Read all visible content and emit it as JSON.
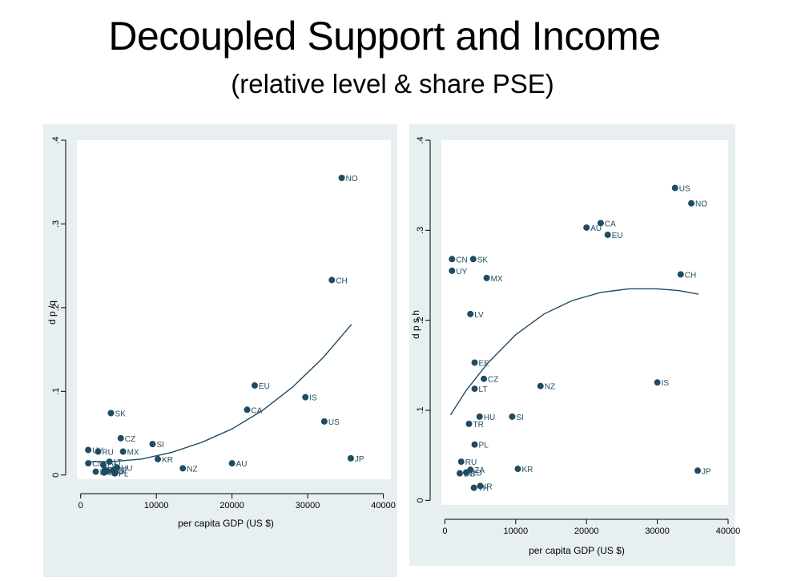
{
  "slide": {
    "title": "Decoupled Support and Income",
    "subtitle": "(relative level & share PSE)"
  },
  "colors": {
    "panel_bg": "#e8eff1",
    "plot_bg": "#ffffff",
    "marker": "#1f4b63",
    "line": "#1f4b63",
    "axis": "#000000"
  },
  "chart_data": [
    {
      "type": "scatter",
      "xlabel": "per capita GDP (US $)",
      "ylabel": "d p /q",
      "xlim": [
        -500,
        41000
      ],
      "ylim": [
        -0.005,
        0.4
      ],
      "xticks": [
        "0",
        "10000",
        "20000",
        "30000",
        "40000"
      ],
      "yticks": [
        "0",
        ".1",
        ".2",
        ".3",
        ".4"
      ],
      "points": [
        {
          "label": "NO",
          "x": 34500,
          "y": 0.355
        },
        {
          "label": "CH",
          "x": 33200,
          "y": 0.233
        },
        {
          "label": "EU",
          "x": 23000,
          "y": 0.107
        },
        {
          "label": "CA",
          "x": 22000,
          "y": 0.078
        },
        {
          "label": "IS",
          "x": 29700,
          "y": 0.093
        },
        {
          "label": "US",
          "x": 32200,
          "y": 0.064
        },
        {
          "label": "JP",
          "x": 35700,
          "y": 0.02
        },
        {
          "label": "AU",
          "x": 20000,
          "y": 0.014
        },
        {
          "label": "NZ",
          "x": 13500,
          "y": 0.008
        },
        {
          "label": "KR",
          "x": 10200,
          "y": 0.019
        },
        {
          "label": "SI",
          "x": 9500,
          "y": 0.037
        },
        {
          "label": "SK",
          "x": 4000,
          "y": 0.074
        },
        {
          "label": "CZ",
          "x": 5300,
          "y": 0.044
        },
        {
          "label": "MX",
          "x": 5600,
          "y": 0.028
        },
        {
          "label": "RU",
          "x": 2300,
          "y": 0.028
        },
        {
          "label": "UY",
          "x": 1000,
          "y": 0.03
        },
        {
          "label": "CN",
          "x": 1000,
          "y": 0.014
        },
        {
          "label": "LT",
          "x": 3800,
          "y": 0.016
        },
        {
          "label": "LV",
          "x": 3000,
          "y": 0.012
        },
        {
          "label": "BG",
          "x": 2000,
          "y": 0.004
        },
        {
          "label": "ZA",
          "x": 3200,
          "y": 0.006
        },
        {
          "label": "TR",
          "x": 3100,
          "y": 0.003
        },
        {
          "label": "HU",
          "x": 4800,
          "y": 0.009
        },
        {
          "label": "EE",
          "x": 4300,
          "y": 0.006
        },
        {
          "label": "PL",
          "x": 4500,
          "y": 0.002
        },
        {
          "label": "RO",
          "x": 3500,
          "y": 0.005
        }
      ],
      "fit": {
        "x": [
          1000,
          4000,
          8000,
          12000,
          16000,
          20000,
          24000,
          28000,
          32000,
          35800
        ],
        "y": [
          0.016,
          0.016,
          0.019,
          0.027,
          0.039,
          0.055,
          0.077,
          0.105,
          0.14,
          0.18
        ]
      }
    },
    {
      "type": "scatter",
      "xlabel": "per capita GDP (US $)",
      "ylabel": "d p s h",
      "xlim": [
        -500,
        40000
      ],
      "ylim": [
        -0.005,
        0.4
      ],
      "xticks": [
        "0",
        "10000",
        "20000",
        "30000",
        "40000"
      ],
      "yticks": [
        "0",
        ".1",
        ".2",
        ".3",
        ".4"
      ],
      "points": [
        {
          "label": "US",
          "x": 32500,
          "y": 0.347
        },
        {
          "label": "NO",
          "x": 34800,
          "y": 0.33
        },
        {
          "label": "AU",
          "x": 20000,
          "y": 0.303
        },
        {
          "label": "CA",
          "x": 22000,
          "y": 0.308
        },
        {
          "label": "EU",
          "x": 23000,
          "y": 0.295
        },
        {
          "label": "CN",
          "x": 1000,
          "y": 0.268
        },
        {
          "label": "SK",
          "x": 4000,
          "y": 0.268
        },
        {
          "label": "UY",
          "x": 1000,
          "y": 0.255
        },
        {
          "label": "MX",
          "x": 5900,
          "y": 0.247
        },
        {
          "label": "CH",
          "x": 33300,
          "y": 0.251
        },
        {
          "label": "LV",
          "x": 3600,
          "y": 0.207
        },
        {
          "label": "EE",
          "x": 4200,
          "y": 0.153
        },
        {
          "label": "CZ",
          "x": 5500,
          "y": 0.135
        },
        {
          "label": "LT",
          "x": 4200,
          "y": 0.124
        },
        {
          "label": "NZ",
          "x": 13500,
          "y": 0.127
        },
        {
          "label": "IS",
          "x": 30000,
          "y": 0.131
        },
        {
          "label": "SI",
          "x": 9500,
          "y": 0.093
        },
        {
          "label": "HU",
          "x": 4900,
          "y": 0.093
        },
        {
          "label": "TR",
          "x": 3400,
          "y": 0.085
        },
        {
          "label": "PL",
          "x": 4200,
          "y": 0.062
        },
        {
          "label": "RU",
          "x": 2300,
          "y": 0.043
        },
        {
          "label": "BG",
          "x": 2100,
          "y": 0.03
        },
        {
          "label": "ZA",
          "x": 3600,
          "y": 0.034
        },
        {
          "label": "RO",
          "x": 3000,
          "y": 0.031
        },
        {
          "label": "KR",
          "x": 10300,
          "y": 0.035
        },
        {
          "label": "JP",
          "x": 35700,
          "y": 0.033
        },
        {
          "label": "IR",
          "x": 5000,
          "y": 0.016
        },
        {
          "label": "TH",
          "x": 4100,
          "y": 0.014
        }
      ],
      "fit": {
        "x": [
          800,
          3000,
          6000,
          10000,
          14000,
          18000,
          22000,
          26000,
          30000,
          33000,
          35800
        ],
        "y": [
          0.095,
          0.122,
          0.152,
          0.184,
          0.207,
          0.222,
          0.231,
          0.235,
          0.235,
          0.233,
          0.229
        ]
      }
    }
  ]
}
